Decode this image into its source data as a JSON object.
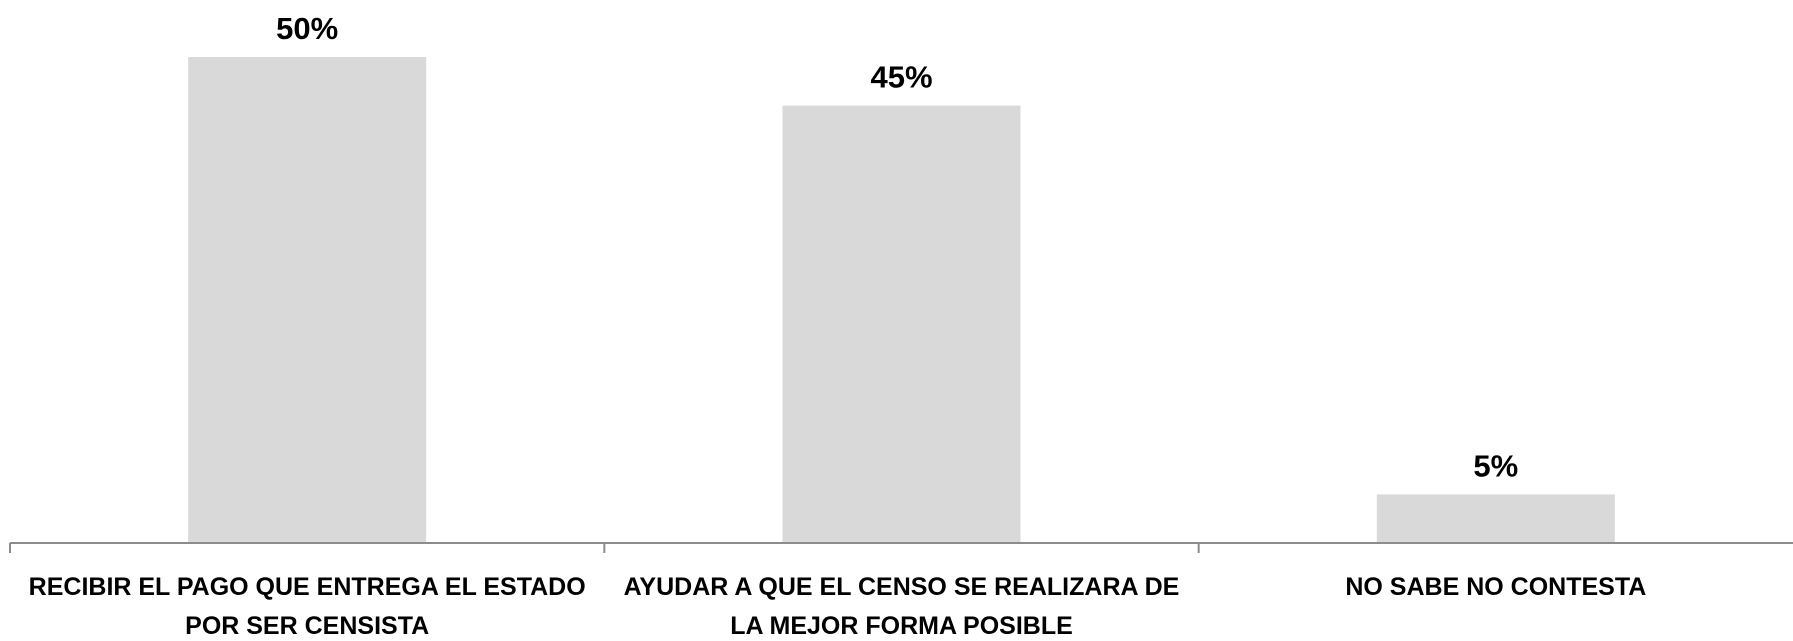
{
  "chart_data": {
    "type": "bar",
    "categories": [
      [
        "RECIBIR EL PAGO QUE ENTREGA EL ESTADO",
        "POR SER CENSISTA"
      ],
      [
        "AYUDAR A QUE EL CENSO SE REALIZARA DE",
        "LA MEJOR FORMA POSIBLE"
      ],
      [
        "NO SABE NO CONTESTA"
      ]
    ],
    "values": [
      50,
      45,
      5
    ],
    "value_labels": [
      "50%",
      "45%",
      "5%"
    ],
    "unit": "%",
    "ylim": [
      0,
      50
    ],
    "grid": false,
    "legend": "none",
    "colors": {
      "bar": "#d9d9d9",
      "axis": "#8c8c8c",
      "text": "#000000"
    }
  }
}
